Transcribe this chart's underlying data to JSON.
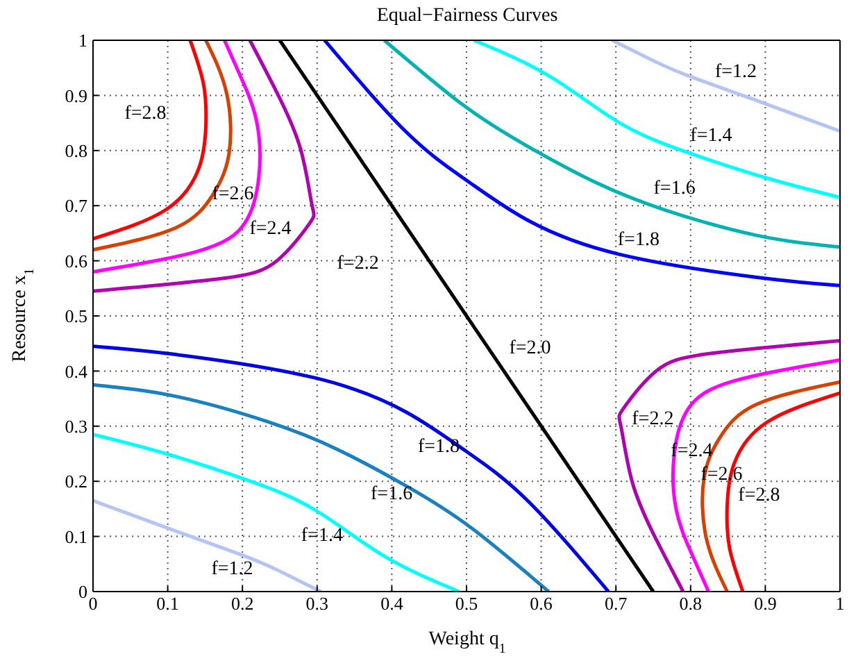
{
  "chart_data": {
    "type": "line",
    "title": "Equal−Fairness Curves",
    "xlabel": "Weight q$_{1}$",
    "ylabel": "Resource x$_{1}$",
    "xlim": [
      0,
      1
    ],
    "ylim": [
      0,
      1
    ],
    "xticks": [
      0,
      0.1,
      0.2,
      0.3,
      0.4,
      0.5,
      0.6,
      0.7,
      0.8,
      0.9,
      1
    ],
    "yticks": [
      0,
      0.1,
      0.2,
      0.3,
      0.4,
      0.5,
      0.6,
      0.7,
      0.8,
      0.9,
      1
    ],
    "grid": true,
    "marker": "none",
    "line_style": "solid",
    "series": [
      {
        "color": "#b3c4f5",
        "x": [
          0,
          0.1,
          0.2,
          0.25,
          0.305
        ],
        "values": [
          0.165,
          0.115,
          0.066,
          0.037,
          0
        ]
      },
      {
        "color": "#00ffff",
        "x": [
          0,
          0.098,
          0.203,
          0.296,
          0.389,
          0.49
        ],
        "values": [
          0.285,
          0.25,
          0.204,
          0.149,
          0.065,
          0
        ]
      },
      {
        "color": "#1a80c0",
        "x": [
          0,
          0.111,
          0.234,
          0.327,
          0.42,
          0.506,
          0.61
        ],
        "values": [
          0.375,
          0.354,
          0.308,
          0.258,
          0.191,
          0.116,
          0
        ]
      },
      {
        "color": "#0000e6",
        "x": [
          0,
          0.111,
          0.296,
          0.42,
          0.5,
          0.581,
          0.69
        ],
        "values": [
          0.445,
          0.43,
          0.388,
          0.325,
          0.254,
          0.166,
          0
        ]
      },
      {
        "color": "#000000",
        "x": [
          0.25,
          0.75
        ],
        "values": [
          1,
          0
        ]
      },
      {
        "color": "#0000ff",
        "x": [
          0.31,
          0.419,
          0.5,
          0.58,
          0.704,
          0.889,
          1
        ],
        "values": [
          1,
          0.834,
          0.746,
          0.675,
          0.612,
          0.57,
          0.555
        ]
      },
      {
        "color": "#00b3b3",
        "x": [
          0.39,
          0.494,
          0.58,
          0.673,
          0.766,
          0.889,
          1
        ],
        "values": [
          1,
          0.884,
          0.809,
          0.742,
          0.692,
          0.646,
          0.625
        ]
      },
      {
        "color": "#00ffff",
        "x": [
          0.51,
          0.611,
          0.704,
          0.797,
          0.902,
          1
        ],
        "values": [
          1,
          0.935,
          0.851,
          0.796,
          0.75,
          0.715
        ]
      },
      {
        "color": "#b3c4f5",
        "x": [
          0.695,
          0.75,
          0.8,
          0.9,
          1
        ],
        "values": [
          1,
          0.963,
          0.934,
          0.885,
          0.835
        ]
      },
      {
        "color": "#b000b0",
        "x": [
          0,
          0.173,
          0.247,
          0.29,
          0.293,
          0.278,
          0.247,
          0.21
        ],
        "values": [
          0.545,
          0.568,
          0.601,
          0.668,
          0.702,
          0.802,
          0.903,
          1
        ]
      },
      {
        "color": "#ff00ff",
        "x": [
          0,
          0.142,
          0.203,
          0.222,
          0.219,
          0.197,
          0.176
        ],
        "values": [
          0.58,
          0.618,
          0.668,
          0.752,
          0.853,
          0.936,
          1
        ]
      },
      {
        "color": "#d84000",
        "x": [
          0,
          0.111,
          0.16,
          0.182,
          0.179,
          0.151
        ],
        "values": [
          0.62,
          0.66,
          0.719,
          0.794,
          0.903,
          1
        ]
      },
      {
        "color": "#ff0000",
        "x": [
          0,
          0.098,
          0.142,
          0.151,
          0.148,
          0.13
        ],
        "values": [
          0.64,
          0.693,
          0.769,
          0.844,
          0.92,
          1
        ]
      },
      {
        "color": "#b000b0",
        "x": [
          1,
          0.827,
          0.753,
          0.71,
          0.707,
          0.722,
          0.753,
          0.79
        ],
        "values": [
          0.455,
          0.432,
          0.399,
          0.332,
          0.298,
          0.198,
          0.097,
          0
        ]
      },
      {
        "color": "#ff00ff",
        "x": [
          1,
          0.858,
          0.797,
          0.778,
          0.781,
          0.803,
          0.824
        ],
        "values": [
          0.42,
          0.382,
          0.332,
          0.248,
          0.147,
          0.064,
          0
        ]
      },
      {
        "color": "#d84000",
        "x": [
          1,
          0.889,
          0.84,
          0.818,
          0.821,
          0.849
        ],
        "values": [
          0.38,
          0.34,
          0.281,
          0.206,
          0.097,
          0
        ]
      },
      {
        "color": "#ff0000",
        "x": [
          1,
          0.902,
          0.858,
          0.849,
          0.852,
          0.87
        ],
        "values": [
          0.36,
          0.307,
          0.231,
          0.156,
          0.08,
          0
        ]
      }
    ],
    "annotations": [
      "f=2.8",
      "f=2.6",
      "f=2.4",
      "f=2.2",
      "f=1.2",
      "f=1.4",
      "f=1.6",
      "f=1.8",
      "f=2.0",
      "f=2.2",
      "f=2.4",
      "f=2.6",
      "f=2.8",
      "f=1.8",
      "f=1.6",
      "f=1.4",
      "f=1.2"
    ]
  }
}
